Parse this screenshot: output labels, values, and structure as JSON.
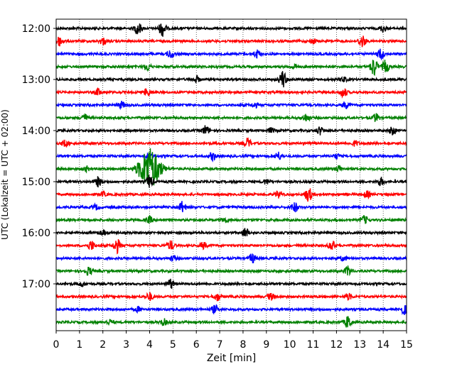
{
  "chart_data": {
    "type": "line",
    "title": "",
    "xlabel": "Zeit  [min]",
    "ylabel": "UTC (Lokalzeit = UTC + 02:00)",
    "xlim": [
      0,
      15
    ],
    "x_ticks": [
      "0",
      "1",
      "2",
      "3",
      "4",
      "5",
      "6",
      "7",
      "8",
      "9",
      "10",
      "11",
      "12",
      "13",
      "14",
      "15"
    ],
    "y_ticks": [
      "12:00",
      "13:00",
      "14:00",
      "15:00",
      "16:00",
      "17:00"
    ],
    "grid": "vertical dotted lines at each minute",
    "trace_interval_minutes": 15,
    "traces_start": "12:00",
    "colors": [
      "#000000",
      "#ff0000",
      "#0000ff",
      "#008000"
    ],
    "series": [
      {
        "start": "12:00",
        "color": "#000000",
        "bursts": [
          {
            "t": 3.5,
            "a": 0.8
          },
          {
            "t": 4.55,
            "a": 1.0
          },
          {
            "t": 14.0,
            "a": 0.4
          }
        ]
      },
      {
        "start": "12:15",
        "color": "#ff0000",
        "bursts": [
          {
            "t": 0.15,
            "a": 0.6
          },
          {
            "t": 2.0,
            "a": 0.4
          },
          {
            "t": 13.1,
            "a": 0.8
          },
          {
            "t": 11.0,
            "a": 0.3
          }
        ]
      },
      {
        "start": "12:30",
        "color": "#0000ff",
        "bursts": [
          {
            "t": 4.9,
            "a": 0.5
          },
          {
            "t": 8.6,
            "a": 0.5
          },
          {
            "t": 13.9,
            "a": 0.7
          }
        ]
      },
      {
        "start": "12:45",
        "color": "#008000",
        "bursts": [
          {
            "t": 3.9,
            "a": 0.5
          },
          {
            "t": 13.6,
            "a": 1.2
          },
          {
            "t": 14.1,
            "a": 0.8
          },
          {
            "t": 10.2,
            "a": 0.3
          }
        ]
      },
      {
        "start": "13:00",
        "color": "#000000",
        "bursts": [
          {
            "t": 6.0,
            "a": 0.4
          },
          {
            "t": 9.7,
            "a": 1.1
          },
          {
            "t": 12.3,
            "a": 0.3
          }
        ]
      },
      {
        "start": "13:15",
        "color": "#ff0000",
        "bursts": [
          {
            "t": 1.8,
            "a": 0.4
          },
          {
            "t": 3.9,
            "a": 0.5
          },
          {
            "t": 12.3,
            "a": 0.6
          }
        ]
      },
      {
        "start": "13:30",
        "color": "#0000ff",
        "bursts": [
          {
            "t": 2.8,
            "a": 0.4
          },
          {
            "t": 12.4,
            "a": 0.4
          },
          {
            "t": 8.5,
            "a": 0.3
          }
        ]
      },
      {
        "start": "13:45",
        "color": "#008000",
        "bursts": [
          {
            "t": 1.2,
            "a": 0.5
          },
          {
            "t": 10.7,
            "a": 0.5
          },
          {
            "t": 13.7,
            "a": 0.5
          }
        ]
      },
      {
        "start": "14:00",
        "color": "#000000",
        "bursts": [
          {
            "t": 6.4,
            "a": 0.6
          },
          {
            "t": 11.3,
            "a": 0.5
          },
          {
            "t": 14.4,
            "a": 0.5
          },
          {
            "t": 9.2,
            "a": 0.3
          }
        ]
      },
      {
        "start": "14:15",
        "color": "#ff0000",
        "bursts": [
          {
            "t": 0.4,
            "a": 0.4
          },
          {
            "t": 8.2,
            "a": 0.6
          },
          {
            "t": 12.8,
            "a": 0.3
          }
        ]
      },
      {
        "start": "14:30",
        "color": "#0000ff",
        "bursts": [
          {
            "t": 6.7,
            "a": 0.5
          },
          {
            "t": 9.5,
            "a": 0.5
          },
          {
            "t": 4.0,
            "a": 0.4
          },
          {
            "t": 12.0,
            "a": 0.3
          }
        ]
      },
      {
        "start": "14:45",
        "color": "#008000",
        "bursts": [
          {
            "t": 4.0,
            "a": 2.6
          },
          {
            "t": 12.1,
            "a": 0.4
          },
          {
            "t": 1.3,
            "a": 0.3
          }
        ]
      },
      {
        "start": "15:00",
        "color": "#000000",
        "bursts": [
          {
            "t": 1.8,
            "a": 0.6
          },
          {
            "t": 4.0,
            "a": 0.8
          },
          {
            "t": 13.9,
            "a": 0.5
          },
          {
            "t": 9.0,
            "a": 0.3
          }
        ]
      },
      {
        "start": "15:15",
        "color": "#ff0000",
        "bursts": [
          {
            "t": 10.8,
            "a": 0.9
          },
          {
            "t": 9.5,
            "a": 0.4
          },
          {
            "t": 2.0,
            "a": 0.3
          },
          {
            "t": 13.3,
            "a": 0.4
          }
        ]
      },
      {
        "start": "15:30",
        "color": "#0000ff",
        "bursts": [
          {
            "t": 5.4,
            "a": 0.7
          },
          {
            "t": 10.2,
            "a": 0.6
          },
          {
            "t": 1.7,
            "a": 0.3
          }
        ]
      },
      {
        "start": "15:45",
        "color": "#008000",
        "bursts": [
          {
            "t": 4.0,
            "a": 0.4
          },
          {
            "t": 13.2,
            "a": 0.5
          },
          {
            "t": 7.2,
            "a": 0.3
          }
        ]
      },
      {
        "start": "16:00",
        "color": "#000000",
        "bursts": [
          {
            "t": 8.1,
            "a": 0.6
          },
          {
            "t": 2.0,
            "a": 0.3
          }
        ]
      },
      {
        "start": "16:15",
        "color": "#ff0000",
        "bursts": [
          {
            "t": 2.6,
            "a": 0.9
          },
          {
            "t": 1.5,
            "a": 0.6
          },
          {
            "t": 4.9,
            "a": 0.6
          },
          {
            "t": 11.8,
            "a": 0.6
          },
          {
            "t": 6.3,
            "a": 0.4
          }
        ]
      },
      {
        "start": "16:30",
        "color": "#0000ff",
        "bursts": [
          {
            "t": 8.4,
            "a": 0.6
          },
          {
            "t": 12.3,
            "a": 0.3
          },
          {
            "t": 5.0,
            "a": 0.3
          }
        ]
      },
      {
        "start": "16:45",
        "color": "#008000",
        "bursts": [
          {
            "t": 1.4,
            "a": 0.5
          },
          {
            "t": 12.5,
            "a": 0.6
          }
        ]
      },
      {
        "start": "17:00",
        "color": "#000000",
        "bursts": [
          {
            "t": 4.9,
            "a": 0.6
          },
          {
            "t": 1.1,
            "a": 0.3
          }
        ]
      },
      {
        "start": "17:15",
        "color": "#ff0000",
        "bursts": [
          {
            "t": 4.0,
            "a": 0.5
          },
          {
            "t": 6.9,
            "a": 0.5
          },
          {
            "t": 9.2,
            "a": 0.4
          },
          {
            "t": 12.5,
            "a": 0.4
          }
        ]
      },
      {
        "start": "17:30",
        "color": "#0000ff",
        "bursts": [
          {
            "t": 6.8,
            "a": 0.5
          },
          {
            "t": 14.9,
            "a": 0.6
          },
          {
            "t": 3.5,
            "a": 0.3
          }
        ]
      },
      {
        "start": "17:45",
        "color": "#008000",
        "bursts": [
          {
            "t": 12.5,
            "a": 0.8
          },
          {
            "t": 4.6,
            "a": 0.4
          },
          {
            "t": 2.3,
            "a": 0.3
          }
        ]
      }
    ]
  }
}
